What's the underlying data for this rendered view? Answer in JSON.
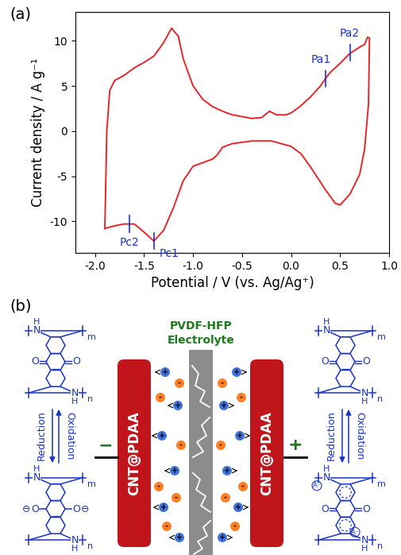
{
  "panel_labels": [
    "(a)",
    "(b)"
  ],
  "chart_data": {
    "type": "line",
    "xlabel": "Potential / V (vs. Ag/Ag⁺)",
    "ylabel": "Current density / A g⁻¹",
    "xlim": [
      -2.2,
      1.0
    ],
    "xticks": [
      -2.0,
      -1.5,
      -1.0,
      -0.5,
      0.0,
      0.5,
      1.0
    ],
    "ylim": [
      -13.5,
      13.2
    ],
    "yticks": [
      -10,
      -5,
      0,
      5,
      10
    ],
    "series": [
      {
        "color": "#e8262a",
        "x": [
          -1.9,
          -1.88,
          -1.85,
          -1.8,
          -1.7,
          -1.6,
          -1.5,
          -1.4,
          -1.3,
          -1.22,
          -1.15,
          -1.1,
          -1.0,
          -0.9,
          -0.8,
          -0.7,
          -0.6,
          -0.5,
          -0.4,
          -0.3,
          -0.22,
          -0.15,
          -0.05,
          0.0,
          0.1,
          0.2,
          0.3,
          0.35,
          0.4,
          0.5,
          0.6,
          0.7,
          0.75,
          0.78,
          0.8,
          0.79,
          0.75,
          0.7,
          0.6,
          0.5,
          0.45,
          0.35,
          0.2,
          0.1,
          0.0,
          -0.2,
          -0.4,
          -0.6,
          -0.7,
          -0.75,
          -0.8,
          -0.9,
          -1.0,
          -1.1,
          -1.2,
          -1.3,
          -1.4,
          -1.5,
          -1.6,
          -1.7,
          -1.8,
          -1.9
        ],
        "values": [
          -10.8,
          0.0,
          4.5,
          5.6,
          6.2,
          7.0,
          7.6,
          8.3,
          9.8,
          11.4,
          10.5,
          8.0,
          5.0,
          3.5,
          2.7,
          2.2,
          1.8,
          1.6,
          1.4,
          1.5,
          2.2,
          1.8,
          1.8,
          2.0,
          2.8,
          3.8,
          5.0,
          5.8,
          6.5,
          7.5,
          8.6,
          9.3,
          9.6,
          10.4,
          10.3,
          3.0,
          -2.0,
          -4.8,
          -7.0,
          -8.2,
          -8.0,
          -6.5,
          -4.0,
          -2.5,
          -1.7,
          -1.1,
          -1.1,
          -1.4,
          -1.8,
          -2.6,
          -3.1,
          -3.5,
          -3.9,
          -5.5,
          -8.5,
          -11.0,
          -12.2,
          -11.2,
          -10.3,
          -10.3,
          -10.5,
          -10.8
        ]
      }
    ],
    "annotations": [
      {
        "text": "Pa1",
        "x": 0.35,
        "y": 5.8
      },
      {
        "text": "Pa2",
        "x": 0.6,
        "y": 8.7
      },
      {
        "text": "Pc1",
        "x": -1.4,
        "y": -12.2
      },
      {
        "text": "Pc2",
        "x": -1.65,
        "y": -10.3
      }
    ]
  },
  "diagram": {
    "electrolyte": {
      "lines": [
        "PVDF-HFP",
        "Electrolyte"
      ],
      "color": "#1f7a1f"
    },
    "electrodes": [
      {
        "label": "CNT@PDAA",
        "terminal": "−"
      },
      {
        "label": "CNT@PDAA",
        "terminal": "+"
      }
    ],
    "ions": {
      "cation": "+",
      "anion": "-"
    },
    "redox": [
      [
        "Reduction",
        "Oxidation"
      ],
      [
        "Reduction",
        "Oxidation"
      ]
    ],
    "atoms": {
      "nitrogen": "N",
      "hydrogen": "H",
      "oxygen": "O",
      "charge": "⊖",
      "counter_anion": "A⁻",
      "repeat_units": [
        "m",
        "n"
      ]
    }
  }
}
